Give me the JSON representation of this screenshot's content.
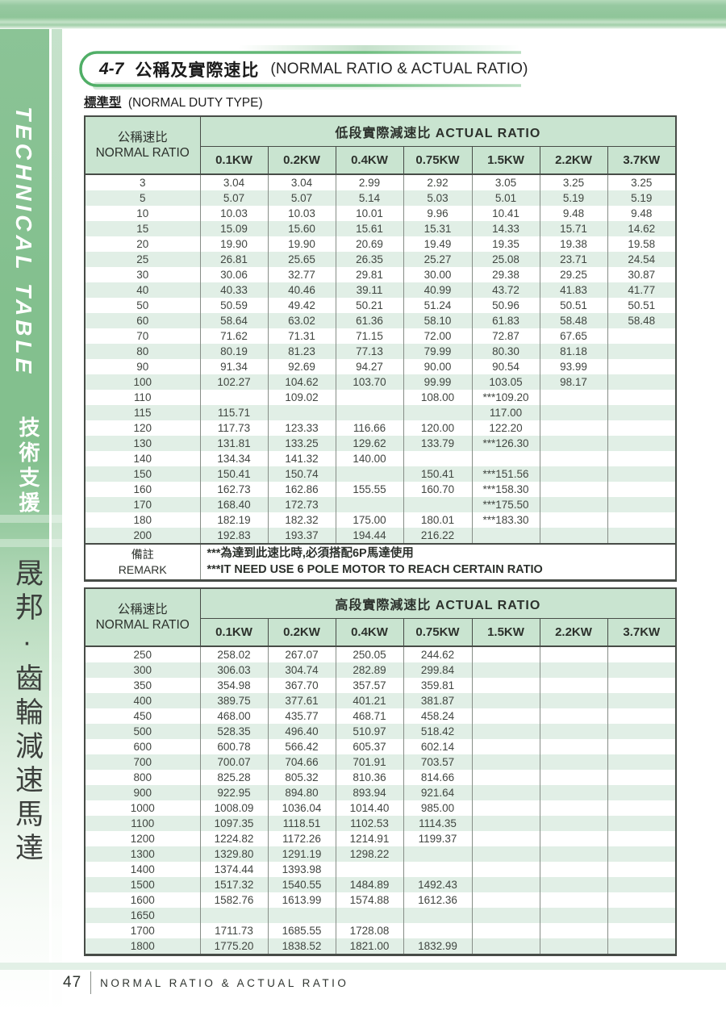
{
  "sidebar": {
    "tab_title_en": "TECHNICAL TABLE",
    "tab_title_zh": "技術支援",
    "brand_text": "晟邦·齒輪減速馬達"
  },
  "header": {
    "section_no": "4-7",
    "title_zh": "公稱及實際速比",
    "title_en": "(NORMAL RATIO & ACTUAL RATIO)",
    "subtitle_zh": "標準型",
    "subtitle_en": "(NORMAL DUTY TYPE)"
  },
  "tables": [
    {
      "row_header_zh": "公稱速比",
      "row_header_en": "NORMAL RATIO",
      "group_header": "低段實際減速比 ACTUAL RATIO",
      "columns": [
        "0.1KW",
        "0.2KW",
        "0.4KW",
        "0.75KW",
        "1.5KW",
        "2.2KW",
        "3.7KW"
      ],
      "rows": [
        [
          "3",
          "3.04",
          "3.04",
          "2.99",
          "2.92",
          "3.05",
          "3.25",
          "3.25"
        ],
        [
          "5",
          "5.07",
          "5.07",
          "5.14",
          "5.03",
          "5.01",
          "5.19",
          "5.19"
        ],
        [
          "10",
          "10.03",
          "10.03",
          "10.01",
          "9.96",
          "10.41",
          "9.48",
          "9.48"
        ],
        [
          "15",
          "15.09",
          "15.60",
          "15.61",
          "15.31",
          "14.33",
          "15.71",
          "14.62"
        ],
        [
          "20",
          "19.90",
          "19.90",
          "20.69",
          "19.49",
          "19.35",
          "19.38",
          "19.58"
        ],
        [
          "25",
          "26.81",
          "25.65",
          "26.35",
          "25.27",
          "25.08",
          "23.71",
          "24.54"
        ],
        [
          "30",
          "30.06",
          "32.77",
          "29.81",
          "30.00",
          "29.38",
          "29.25",
          "30.87"
        ],
        [
          "40",
          "40.33",
          "40.46",
          "39.11",
          "40.99",
          "43.72",
          "41.83",
          "41.77"
        ],
        [
          "50",
          "50.59",
          "49.42",
          "50.21",
          "51.24",
          "50.96",
          "50.51",
          "50.51"
        ],
        [
          "60",
          "58.64",
          "63.02",
          "61.36",
          "58.10",
          "61.83",
          "58.48",
          "58.48"
        ],
        [
          "70",
          "71.62",
          "71.31",
          "71.15",
          "72.00",
          "72.87",
          "67.65",
          ""
        ],
        [
          "80",
          "80.19",
          "81.23",
          "77.13",
          "79.99",
          "80.30",
          "81.18",
          ""
        ],
        [
          "90",
          "91.34",
          "92.69",
          "94.27",
          "90.00",
          "90.54",
          "93.99",
          ""
        ],
        [
          "100",
          "102.27",
          "104.62",
          "103.70",
          "99.99",
          "103.05",
          "98.17",
          ""
        ],
        [
          "110",
          "",
          "109.02",
          "",
          "108.00",
          "***109.20",
          "",
          ""
        ],
        [
          "115",
          "115.71",
          "",
          "",
          "",
          "117.00",
          "",
          ""
        ],
        [
          "120",
          "117.73",
          "123.33",
          "116.66",
          "120.00",
          "122.20",
          "",
          ""
        ],
        [
          "130",
          "131.81",
          "133.25",
          "129.62",
          "133.79",
          "***126.30",
          "",
          ""
        ],
        [
          "140",
          "134.34",
          "141.32",
          "140.00",
          "",
          "",
          "",
          ""
        ],
        [
          "150",
          "150.41",
          "150.74",
          "",
          "150.41",
          "***151.56",
          "",
          ""
        ],
        [
          "160",
          "162.73",
          "162.86",
          "155.55",
          "160.70",
          "***158.30",
          "",
          ""
        ],
        [
          "170",
          "168.40",
          "172.73",
          "",
          "",
          "***175.50",
          "",
          ""
        ],
        [
          "180",
          "182.19",
          "182.32",
          "175.00",
          "180.01",
          "***183.30",
          "",
          ""
        ],
        [
          "200",
          "192.83",
          "193.37",
          "194.44",
          "216.22",
          "",
          "",
          ""
        ]
      ],
      "remark": {
        "label_zh": "備註",
        "label_en": "REMARK",
        "line_zh": "***為達到此速比時,必須搭配6P馬達使用",
        "line_en": "***IT NEED USE 6 POLE MOTOR TO REACH CERTAIN RATIO"
      }
    },
    {
      "row_header_zh": "公稱速比",
      "row_header_en": "NORMAL RATIO",
      "group_header": "高段實際減速比 ACTUAL RATIO",
      "columns": [
        "0.1KW",
        "0.2KW",
        "0.4KW",
        "0.75KW",
        "1.5KW",
        "2.2KW",
        "3.7KW"
      ],
      "rows": [
        [
          "250",
          "258.02",
          "267.07",
          "250.05",
          "244.62",
          "",
          "",
          ""
        ],
        [
          "300",
          "306.03",
          "304.74",
          "282.89",
          "299.84",
          "",
          "",
          ""
        ],
        [
          "350",
          "354.98",
          "367.70",
          "357.57",
          "359.81",
          "",
          "",
          ""
        ],
        [
          "400",
          "389.75",
          "377.61",
          "401.21",
          "381.87",
          "",
          "",
          ""
        ],
        [
          "450",
          "468.00",
          "435.77",
          "468.71",
          "458.24",
          "",
          "",
          ""
        ],
        [
          "500",
          "528.35",
          "496.40",
          "510.97",
          "518.42",
          "",
          "",
          ""
        ],
        [
          "600",
          "600.78",
          "566.42",
          "605.37",
          "602.14",
          "",
          "",
          ""
        ],
        [
          "700",
          "700.07",
          "704.66",
          "701.91",
          "703.57",
          "",
          "",
          ""
        ],
        [
          "800",
          "825.28",
          "805.32",
          "810.36",
          "814.66",
          "",
          "",
          ""
        ],
        [
          "900",
          "922.95",
          "894.80",
          "893.94",
          "921.64",
          "",
          "",
          ""
        ],
        [
          "1000",
          "1008.09",
          "1036.04",
          "1014.40",
          "985.00",
          "",
          "",
          ""
        ],
        [
          "1100",
          "1097.35",
          "1118.51",
          "1102.53",
          "1114.35",
          "",
          "",
          ""
        ],
        [
          "1200",
          "1224.82",
          "1172.26",
          "1214.91",
          "1199.37",
          "",
          "",
          ""
        ],
        [
          "1300",
          "1329.80",
          "1291.19",
          "1298.22",
          "",
          "",
          "",
          ""
        ],
        [
          "1400",
          "1374.44",
          "1393.98",
          "",
          "",
          "",
          "",
          ""
        ],
        [
          "1500",
          "1517.32",
          "1540.55",
          "1484.89",
          "1492.43",
          "",
          "",
          ""
        ],
        [
          "1600",
          "1582.76",
          "1613.99",
          "1574.88",
          "1612.36",
          "",
          "",
          ""
        ],
        [
          "1650",
          "",
          "",
          "",
          "",
          "",
          "",
          ""
        ],
        [
          "1700",
          "1711.73",
          "1685.55",
          "1728.08",
          "",
          "",
          "",
          ""
        ],
        [
          "1800",
          "1775.20",
          "1838.52",
          "1821.00",
          "1832.99",
          "",
          "",
          ""
        ]
      ]
    }
  ],
  "footer": {
    "page_number": "47",
    "title": "NORMAL RATIO & ACTUAL RATIO"
  },
  "colors": {
    "accent_green": "#83c08e",
    "header_cell_bg": "#c9e4d0",
    "alt_row_bg": "#e1efe6",
    "border_dark": "#474c47"
  }
}
